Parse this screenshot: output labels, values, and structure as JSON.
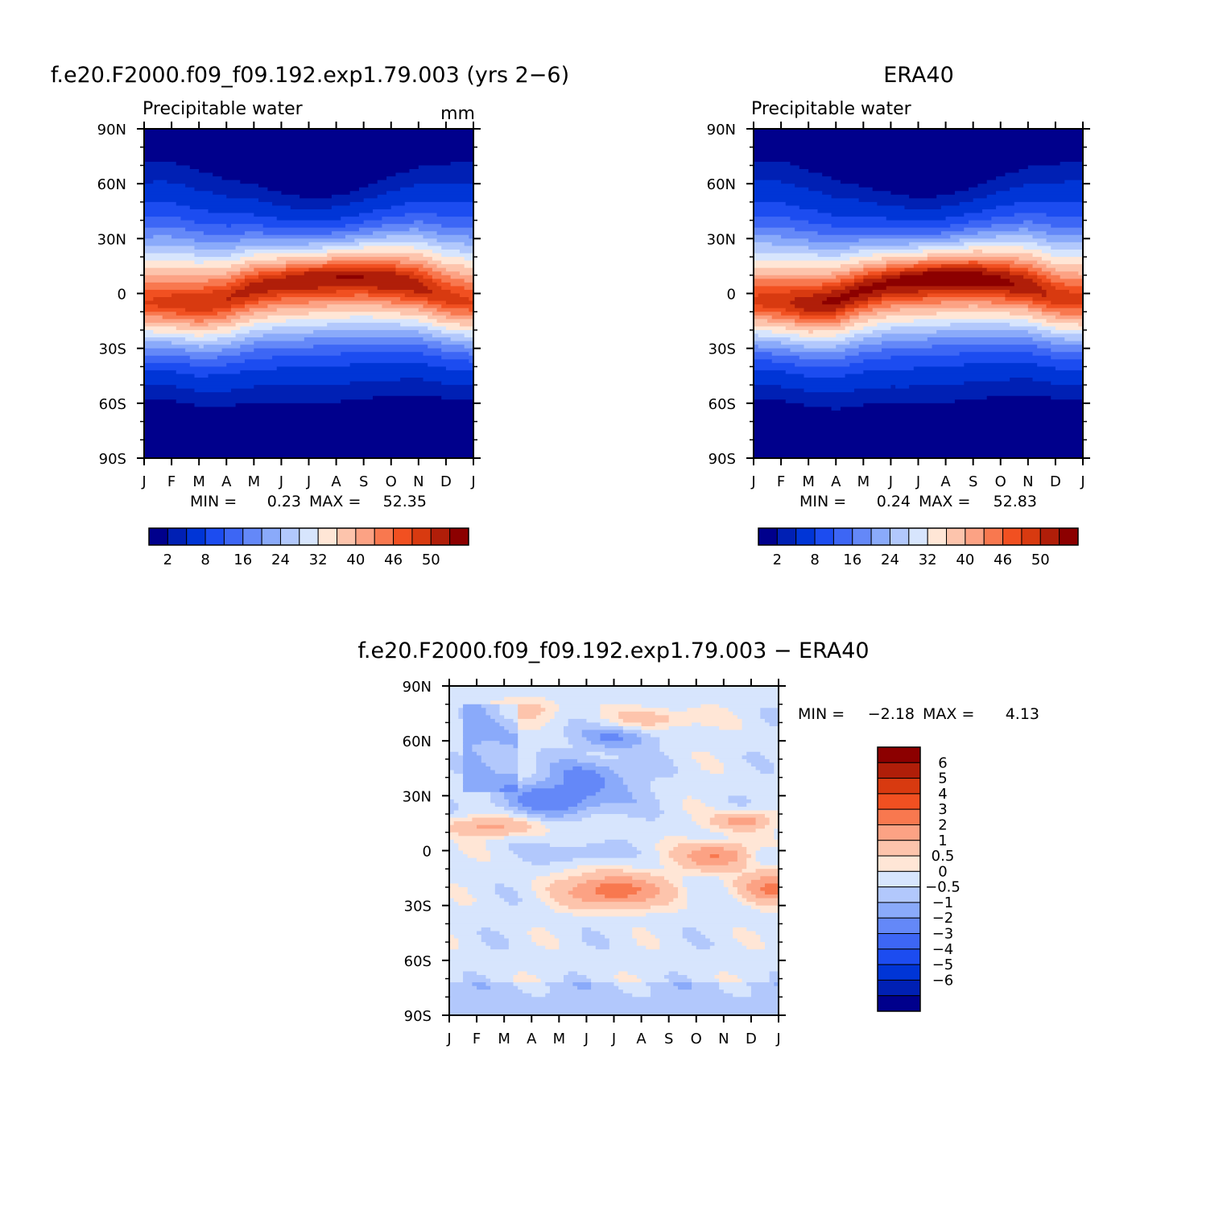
{
  "colors": {
    "precip_levels": [
      "#00008c",
      "#0020b4",
      "#0035d6",
      "#1c4cf0",
      "#3d66f5",
      "#6488f8",
      "#8aaafa",
      "#b2c8fc",
      "#d7e5fd",
      "#ffe6d6",
      "#fdc4ac",
      "#fca284",
      "#f8784f",
      "#f15021",
      "#d83a10",
      "#b01e09",
      "#8c0000"
    ],
    "diff_levels": [
      "#00008c",
      "#0020b4",
      "#0035d6",
      "#1c4cf0",
      "#3d66f5",
      "#6488f8",
      "#8aaafa",
      "#b2c8fc",
      "#d7e5fd",
      "#ffe6d6",
      "#fdc4ac",
      "#fca284",
      "#f8784f",
      "#f15021",
      "#d83a10",
      "#b01e09",
      "#8c0000"
    ]
  },
  "chart_data": [
    {
      "type": "heatmap",
      "id": "model",
      "title": "f.e20.F2000.f09_f09.192.exp1.79.003 (yrs 2-6)",
      "subtitle_left": "Precipitable water",
      "subtitle_right": "mm",
      "x_ticks": [
        "J",
        "F",
        "M",
        "A",
        "M",
        "J",
        "J",
        "A",
        "S",
        "O",
        "N",
        "D",
        "J"
      ],
      "y_ticks": [
        "90N",
        "60N",
        "30N",
        "0",
        "30S",
        "60S",
        "90S"
      ],
      "y_values": [
        90,
        60,
        30,
        0,
        -30,
        -60,
        -90
      ],
      "min_label": "MIN =",
      "min_value": "0.23",
      "max_label": "MAX =",
      "max_value": "52.35",
      "levels": [
        2,
        4,
        8,
        12,
        16,
        20,
        24,
        28,
        32,
        36,
        40,
        43,
        46,
        48,
        50,
        52
      ],
      "colorbar_labels": [
        "2",
        "8",
        "16",
        "24",
        "32",
        "40",
        "46",
        "50"
      ],
      "itcz_lat_by_month": [
        -5,
        -5,
        -6,
        -3,
        3,
        6,
        8,
        9,
        9,
        7,
        4,
        -2,
        -5
      ],
      "peak_by_month": [
        48,
        49,
        50,
        50,
        51,
        51,
        52,
        52,
        52,
        52,
        51,
        49,
        48
      ]
    },
    {
      "type": "heatmap",
      "id": "obs",
      "title": "ERA40",
      "subtitle_left": "Precipitable water",
      "x_ticks": [
        "J",
        "F",
        "M",
        "A",
        "M",
        "J",
        "J",
        "A",
        "S",
        "O",
        "N",
        "D",
        "J"
      ],
      "y_ticks": [
        "90N",
        "60N",
        "30N",
        "0",
        "30S",
        "60S",
        "90S"
      ],
      "y_values": [
        90,
        60,
        30,
        0,
        -30,
        -60,
        -90
      ],
      "min_label": "MIN =",
      "min_value": "0.24",
      "max_label": "MAX =",
      "max_value": "52.83",
      "levels": [
        2,
        4,
        8,
        12,
        16,
        20,
        24,
        28,
        32,
        36,
        40,
        43,
        46,
        48,
        50,
        52
      ],
      "colorbar_labels": [
        "2",
        "8",
        "16",
        "24",
        "32",
        "40",
        "46",
        "50"
      ],
      "itcz_lat_by_month": [
        -4,
        -5,
        -6,
        -4,
        2,
        6,
        8,
        9,
        9,
        7,
        4,
        -2,
        -4
      ],
      "peak_by_month": [
        48,
        49,
        51,
        52,
        52,
        52,
        53,
        53,
        53,
        52,
        51,
        49,
        48
      ]
    },
    {
      "type": "heatmap",
      "id": "diff",
      "title": "f.e20.F2000.f09_f09.192.exp1.79.003 - ERA40",
      "x_ticks": [
        "J",
        "F",
        "M",
        "A",
        "M",
        "J",
        "J",
        "A",
        "S",
        "O",
        "N",
        "D",
        "J"
      ],
      "y_ticks": [
        "90N",
        "60N",
        "30N",
        "0",
        "30S",
        "60S",
        "90S"
      ],
      "y_values": [
        90,
        60,
        30,
        0,
        -30,
        -60,
        -90
      ],
      "min_label": "MIN =",
      "min_value": "-2.18",
      "max_label": "MAX =",
      "max_value": "4.13",
      "levels": [
        -6,
        -5,
        -4,
        -3,
        -2,
        -1,
        -0.5,
        0,
        0.5,
        1,
        2,
        3,
        4,
        5,
        6
      ],
      "colorbar_labels": [
        "6",
        "5",
        "4",
        "3",
        "2",
        "1",
        "0.5",
        "0",
        "-0.5",
        "-1",
        "-2",
        "-3",
        "-4",
        "-5",
        "-6"
      ]
    }
  ]
}
